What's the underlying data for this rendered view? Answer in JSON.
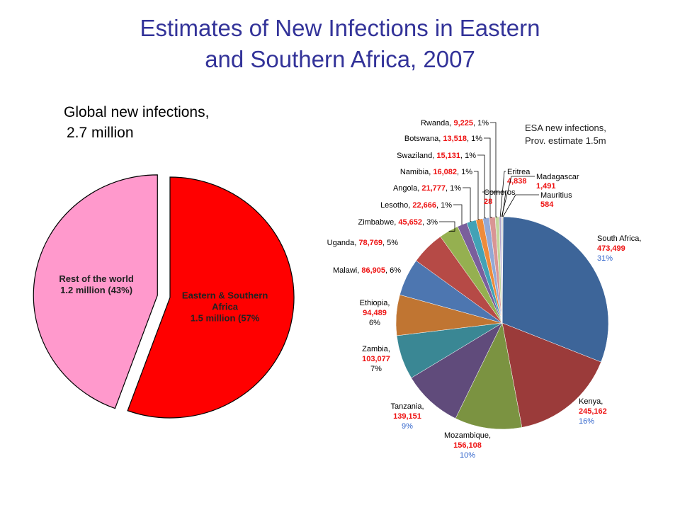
{
  "title_line1": "Estimates of New Infections in Eastern",
  "title_line2": "and Southern Africa, 2007",
  "colors": {
    "title": "#333399",
    "value_red": "#ee1111",
    "pct_blue": "#3366cc"
  },
  "chart_data": [
    {
      "type": "pie",
      "title_line1": "Global new infections,",
      "title_line2": "2.7 million",
      "slices": [
        {
          "label_line1": "Eastern & Southern",
          "label_line2": "Africa",
          "label_line3": "1.5 million (57%",
          "value": 1.5,
          "percent": 57,
          "color": "#ff0000",
          "exploded": false
        },
        {
          "label_line1": "Rest of the world",
          "label_line2": "1.2 million (43%)",
          "value": 1.2,
          "percent": 43,
          "color": "#ff99cc",
          "exploded": true
        }
      ]
    },
    {
      "type": "pie",
      "note_line1": "ESA new infections,",
      "note_line2": "Prov. estimate 1.5m",
      "slices": [
        {
          "name": "South Africa,",
          "value": 473499,
          "value_text": "473,499",
          "pct_text": "31%",
          "color": "#3d6599"
        },
        {
          "name": "Kenya,",
          "value": 245162,
          "value_text": "245,162",
          "pct_text": "16%",
          "color": "#9b3b3a"
        },
        {
          "name": "Mozambique,",
          "value": 156108,
          "value_text": "156,108",
          "pct_text": "10%",
          "color": "#7b9341"
        },
        {
          "name": "Tanzania,",
          "value": 139151,
          "value_text": "139,151",
          "pct_text": "9%",
          "color": "#604b7b"
        },
        {
          "name": "Zambia,",
          "value": 103077,
          "value_text": "103,077",
          "pct_text": "7%",
          "color": "#3a8794"
        },
        {
          "name": "Ethiopia,",
          "value": 94489,
          "value_text": "94,489",
          "pct_text": "6%",
          "color": "#c07532"
        },
        {
          "name": "Malawi,",
          "value": 86905,
          "value_text": "86,905",
          "pct_text": "6%",
          "color": "#4d76b0"
        },
        {
          "name": "Uganda,",
          "value": 78769,
          "value_text": "78,769",
          "pct_text": "5%",
          "color": "#b64a46"
        },
        {
          "name": "Zimbabwe,",
          "value": 45652,
          "value_text": "45,652",
          "pct_text": "3%",
          "color": "#95b050"
        },
        {
          "name": "Lesotho,",
          "value": 22666,
          "value_text": "22,666",
          "pct_text": "1%",
          "color": "#7a5f9c"
        },
        {
          "name": "Angola,",
          "value": 21777,
          "value_text": "21,777",
          "pct_text": "1%",
          "color": "#42a2b6"
        },
        {
          "name": "Namibia,",
          "value": 16082,
          "value_text": "16,082",
          "pct_text": "1%",
          "color": "#ee8b3a"
        },
        {
          "name": "Swaziland,",
          "value": 15131,
          "value_text": "15,131",
          "pct_text": "1%",
          "color": "#92a9d6"
        },
        {
          "name": "Botswana,",
          "value": 13518,
          "value_text": "13,518",
          "pct_text": "1%",
          "color": "#d99594"
        },
        {
          "name": "Rwanda,",
          "value": 9225,
          "value_text": "9,225",
          "pct_text": "1%",
          "color": "#c3d69b"
        },
        {
          "name": "Eritrea",
          "value": 4838,
          "value_text": "4,838",
          "pct_text": "",
          "color": "#b2a2c7"
        },
        {
          "name": "Madagascar",
          "value": 1491,
          "value_text": "1,491",
          "pct_text": "",
          "color": "#93cddd"
        },
        {
          "name": "Comoros",
          "value": 28,
          "value_text": "28",
          "pct_text": "",
          "color": "#fac090"
        },
        {
          "name": "Mauritius",
          "value": 584,
          "value_text": "584",
          "pct_text": "",
          "color": "#a6a6a6"
        }
      ]
    }
  ]
}
